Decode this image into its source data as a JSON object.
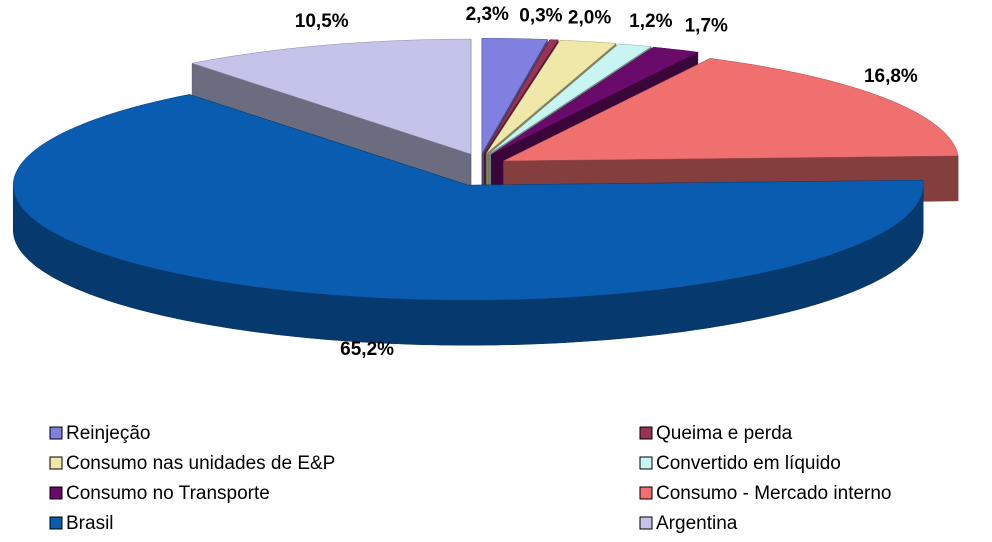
{
  "chart_data": {
    "type": "pie3d",
    "categories": [
      "Reinjeção",
      "Queima e perda",
      "Consumo nas unidades de E&P",
      "Convertido em líquido",
      "Consumo no Transporte",
      "Consumo - Mercado interno",
      "Brasil",
      "Argentina"
    ],
    "series": [
      {
        "values": [
          2.3,
          0.3,
          2.0,
          1.2,
          1.7,
          16.8,
          65.2,
          10.5
        ],
        "value_labels": [
          "2,3%",
          "0,3%",
          "2,0%",
          "1,2%",
          "1,7%",
          "16,8%",
          "65,2%",
          "10,5%"
        ],
        "colors": [
          "#8080e0",
          "#993355",
          "#f0e8a8",
          "#c8f4f4",
          "#6a0a6a",
          "#f07070",
          "#0a5cb0",
          "#c4c4ea"
        ]
      }
    ],
    "legend": "bottom"
  }
}
